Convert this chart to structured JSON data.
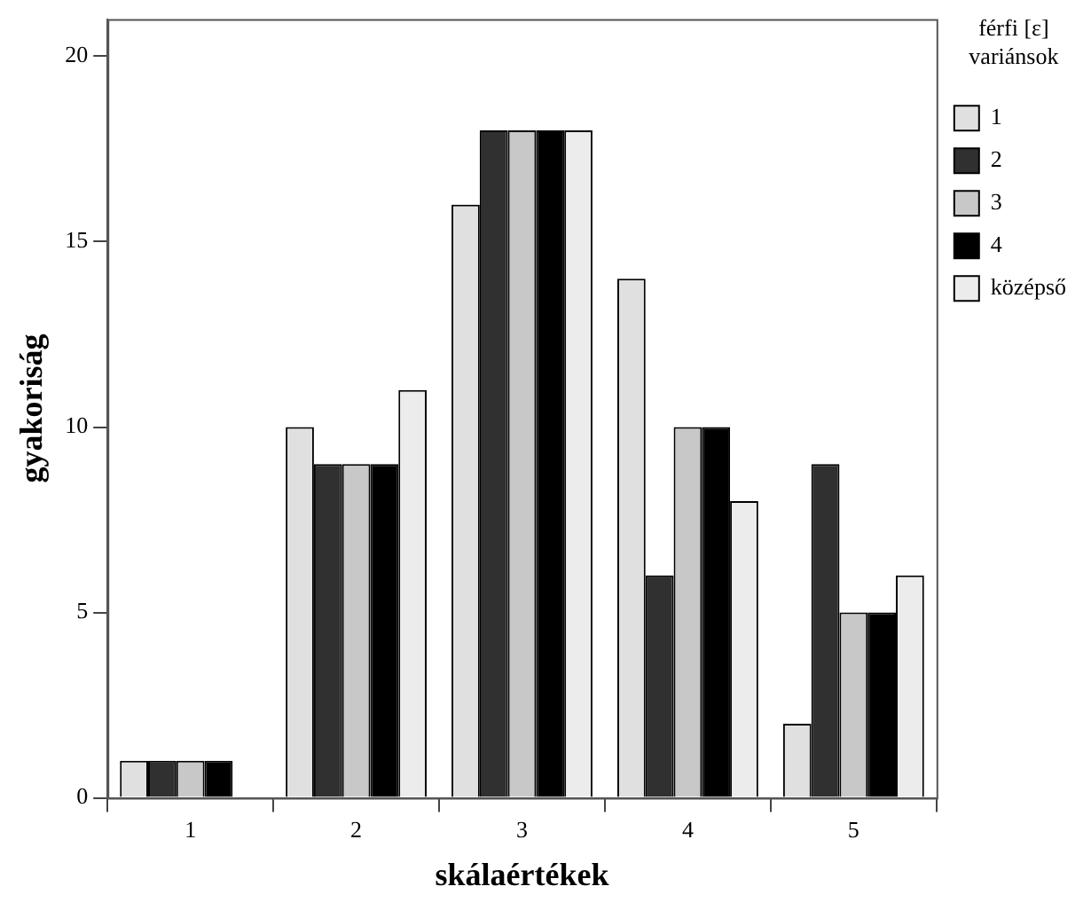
{
  "chart_data": {
    "type": "bar",
    "xlabel": "skálaértékek",
    "ylabel": "gyakoriság",
    "legend_title": "férfi [ε] variánsok",
    "categories": [
      "1",
      "2",
      "3",
      "4",
      "5"
    ],
    "series": [
      {
        "name": "1",
        "color": "#e0e0e0",
        "values": [
          1,
          10,
          16,
          14,
          2
        ]
      },
      {
        "name": "2",
        "color": "#303030",
        "values": [
          1,
          9,
          18,
          6,
          9
        ]
      },
      {
        "name": "3",
        "color": "#c8c8c8",
        "values": [
          1,
          9,
          18,
          10,
          5
        ]
      },
      {
        "name": "4",
        "color": "#000000",
        "values": [
          1,
          9,
          18,
          10,
          5
        ]
      },
      {
        "name": "középső",
        "color": "#ececec",
        "values": [
          0,
          11,
          18,
          8,
          6
        ]
      }
    ],
    "ylim": [
      0,
      21
    ],
    "yticks": [
      0,
      5,
      10,
      15,
      20
    ],
    "grid": false,
    "legend": "top right"
  }
}
